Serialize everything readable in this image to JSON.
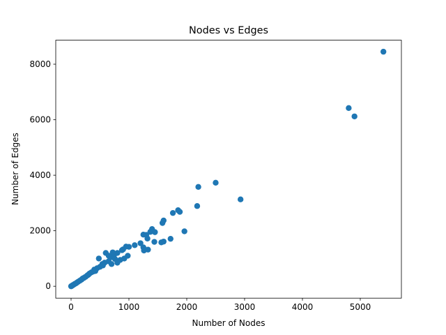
{
  "chart_data": {
    "type": "scatter",
    "title": "Nodes vs Edges",
    "x_label": "Number of Nodes",
    "y_label": "Number of Edges",
    "color": "#1f77b4",
    "x": [
      5400,
      4800,
      4900,
      2500,
      2200,
      2930,
      2180,
      1850,
      1880,
      1760,
      1600,
      1580,
      1960,
      1720,
      1600,
      1560,
      1440,
      1400,
      1370,
      1450,
      1250,
      1300,
      1320,
      1250,
      1260,
      1330,
      1200,
      1100,
      1000,
      950,
      980,
      920,
      880,
      800,
      750,
      720,
      700,
      650,
      600,
      580,
      540,
      480,
      500,
      450,
      400,
      350,
      300,
      250,
      200,
      150,
      100,
      60,
      30,
      10,
      5,
      0,
      700,
      800,
      850,
      900,
      760,
      650,
      550,
      420,
      380,
      320,
      280,
      220,
      180,
      120,
      80,
      40,
      20
    ],
    "y": [
      8450,
      6420,
      6120,
      3730,
      3580,
      3130,
      2890,
      2740,
      2680,
      2640,
      2370,
      2280,
      1980,
      1710,
      1610,
      1580,
      1600,
      2060,
      1960,
      1950,
      1860,
      1850,
      1720,
      1400,
      1290,
      1320,
      1550,
      1480,
      1420,
      1430,
      1100,
      1000,
      1300,
      1200,
      1150,
      1220,
      1050,
      900,
      1200,
      850,
      800,
      1000,
      700,
      650,
      600,
      500,
      420,
      340,
      280,
      200,
      130,
      80,
      40,
      12,
      4,
      0,
      800,
      850,
      950,
      1330,
      980,
      1100,
      750,
      550,
      530,
      460,
      390,
      300,
      240,
      160,
      100,
      50,
      25
    ],
    "xlim": [
      -265,
      5711
    ],
    "ylim": [
      -428,
      8865
    ],
    "xticks": [
      0,
      1000,
      2000,
      3000,
      4000,
      5000
    ],
    "yticks": [
      0,
      2000,
      4000,
      6000,
      8000
    ]
  }
}
